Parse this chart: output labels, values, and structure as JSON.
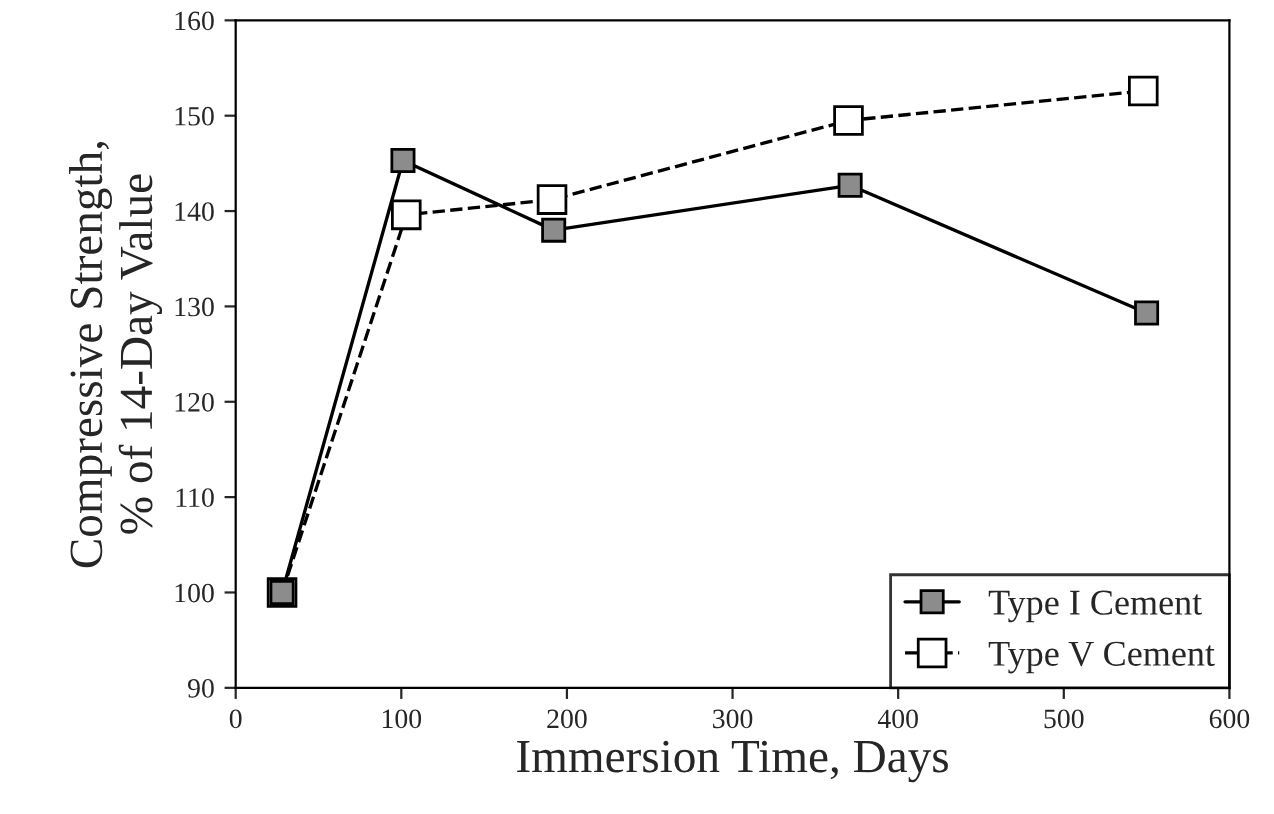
{
  "chart_data": {
    "type": "line",
    "xlabel": "Immersion Time, Days",
    "ylabel": "Compressive Strength,\n% of 14-Day Value",
    "xlim": [
      0,
      600
    ],
    "xticks": [
      0,
      100,
      200,
      300,
      400,
      500,
      600
    ],
    "ylim": [
      90,
      160
    ],
    "yticks": [
      90,
      100,
      110,
      120,
      130,
      140,
      150,
      160
    ],
    "grid": false,
    "legend": "bottom right",
    "marker": "square",
    "series": [
      {
        "name": "Type I Cement",
        "color": "#8c8c8c",
        "line_style": "solid",
        "x": [
          28,
          101,
          192,
          371,
          550
        ],
        "values": [
          100,
          145.3,
          138,
          142.7,
          129.3
        ]
      },
      {
        "name": "Type V Cement",
        "color": "#ffffff",
        "line_style": "dashed",
        "x": [
          28,
          103,
          191,
          370,
          548
        ],
        "values": [
          100,
          139.6,
          141.2,
          149.5,
          152.6
        ]
      }
    ]
  }
}
